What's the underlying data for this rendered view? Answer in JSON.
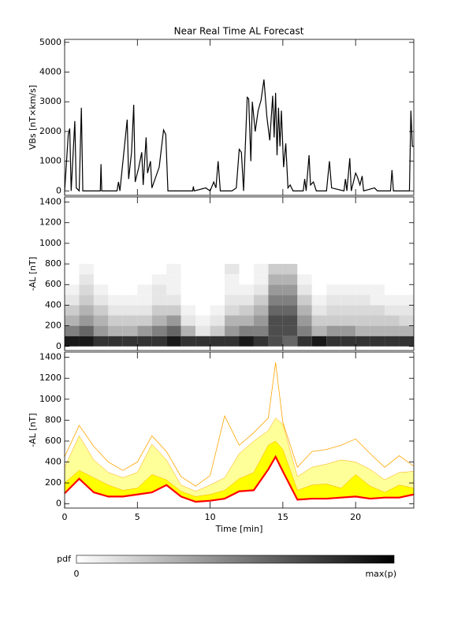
{
  "chart_data": [
    {
      "type": "line",
      "title": "Near Real Time AL Forecast",
      "y_label": "VBs [nT×km/s]",
      "color": "#000000",
      "xlim": [
        0,
        24
      ],
      "xticks": [
        0,
        5,
        10,
        15,
        20
      ],
      "ylim": [
        -150,
        5100
      ],
      "yticks": [
        0,
        1000,
        2000,
        3000,
        4000,
        5000
      ],
      "x": [
        0,
        0.25,
        0.35,
        0.45,
        0.7,
        0.8,
        1.0,
        1.15,
        1.25,
        2.45,
        2.5,
        2.55,
        3.6,
        3.7,
        3.8,
        4.3,
        4.4,
        4.6,
        4.75,
        4.85,
        5.1,
        5.3,
        5.4,
        5.6,
        5.7,
        5.9,
        6.0,
        6.5,
        6.8,
        6.95,
        7.1,
        8.8,
        8.85,
        8.9,
        9.7,
        10.0,
        10.25,
        10.4,
        10.55,
        10.7,
        11.5,
        11.8,
        12.0,
        12.15,
        12.3,
        12.55,
        12.65,
        12.8,
        12.9,
        13.1,
        13.3,
        13.5,
        13.7,
        13.9,
        14.1,
        14.3,
        14.4,
        14.5,
        14.6,
        14.7,
        14.8,
        14.9,
        15.05,
        15.2,
        15.35,
        15.5,
        15.7,
        16.4,
        16.5,
        16.6,
        16.8,
        16.9,
        17.1,
        17.3,
        18.0,
        18.2,
        18.35,
        19.2,
        19.3,
        19.4,
        19.6,
        19.7,
        20.0,
        20.1,
        20.3,
        20.45,
        20.55,
        21.3,
        21.5,
        22.4,
        22.5,
        22.6,
        23.7,
        23.8,
        23.9,
        24.0
      ],
      "values": [
        0,
        1900,
        2100,
        0,
        2350,
        100,
        0,
        2800,
        0,
        0,
        900,
        0,
        0,
        300,
        0,
        2400,
        400,
        1300,
        2900,
        300,
        800,
        1300,
        200,
        1800,
        600,
        1000,
        100,
        800,
        2050,
        1900,
        0,
        0,
        150,
        0,
        100,
        0,
        300,
        100,
        1000,
        0,
        0,
        100,
        1400,
        1300,
        0,
        3150,
        3100,
        1000,
        3000,
        2000,
        2700,
        3050,
        3750,
        2500,
        1700,
        3200,
        1800,
        3300,
        1200,
        2800,
        1500,
        2700,
        800,
        1600,
        100,
        200,
        0,
        0,
        400,
        0,
        1200,
        200,
        300,
        0,
        0,
        1000,
        100,
        0,
        400,
        0,
        1100,
        0,
        600,
        500,
        200,
        500,
        0,
        100,
        0,
        0,
        700,
        0,
        0,
        2700,
        1500,
        1500
      ]
    },
    {
      "type": "heatmap",
      "y_label": "-AL [nT]",
      "xlim": [
        0,
        24
      ],
      "xticks": [
        0,
        5,
        10,
        15,
        20
      ],
      "ylim": [
        -40,
        1450
      ],
      "yticks": [
        0,
        200,
        400,
        600,
        800,
        1000,
        1200,
        1400
      ],
      "x_edges": [
        0,
        1,
        2,
        3,
        4,
        5,
        6,
        7,
        8,
        9,
        10,
        11,
        12,
        13,
        14,
        15,
        16,
        17,
        18,
        19,
        20,
        21,
        22,
        23,
        24
      ],
      "y_edges": [
        0,
        100,
        200,
        300,
        400,
        500,
        600,
        700,
        800
      ],
      "z": [
        [
          0.9,
          0.9,
          0.8,
          0.8,
          0.8,
          0.8,
          0.8,
          0.9,
          0.8,
          0.8,
          0.8,
          0.8,
          0.9,
          0.8,
          0.7,
          0.6,
          0.8,
          0.9,
          0.8,
          0.8,
          0.8,
          0.8,
          0.8,
          0.8
        ],
        [
          0.5,
          0.6,
          0.4,
          0.3,
          0.3,
          0.4,
          0.5,
          0.6,
          0.3,
          0.1,
          0.2,
          0.4,
          0.5,
          0.5,
          0.7,
          0.7,
          0.5,
          0.3,
          0.4,
          0.4,
          0.3,
          0.3,
          0.3,
          0.3
        ],
        [
          0.3,
          0.4,
          0.3,
          0.2,
          0.2,
          0.2,
          0.3,
          0.4,
          0.1,
          0.05,
          0.1,
          0.3,
          0.3,
          0.4,
          0.7,
          0.7,
          0.4,
          0.2,
          0.2,
          0.2,
          0.2,
          0.2,
          0.2,
          0.15
        ],
        [
          0.2,
          0.3,
          0.2,
          0.1,
          0.1,
          0.1,
          0.2,
          0.2,
          0.05,
          0,
          0.05,
          0.15,
          0.2,
          0.3,
          0.6,
          0.6,
          0.3,
          0.1,
          0.15,
          0.15,
          0.15,
          0.15,
          0.1,
          0.1
        ],
        [
          0.1,
          0.2,
          0.1,
          0.05,
          0.05,
          0.05,
          0.1,
          0.1,
          0,
          0,
          0,
          0.1,
          0.1,
          0.2,
          0.5,
          0.5,
          0.2,
          0.05,
          0.1,
          0.1,
          0.1,
          0.05,
          0.05,
          0.05
        ],
        [
          0.05,
          0.15,
          0.05,
          0,
          0,
          0.05,
          0.1,
          0.05,
          0,
          0,
          0,
          0.05,
          0.05,
          0.1,
          0.4,
          0.4,
          0.1,
          0,
          0.05,
          0.05,
          0.05,
          0.05,
          0,
          0
        ],
        [
          0,
          0.1,
          0,
          0,
          0,
          0,
          0.05,
          0.05,
          0,
          0,
          0,
          0.05,
          0,
          0.05,
          0.3,
          0.3,
          0.05,
          0,
          0,
          0,
          0,
          0,
          0,
          0
        ],
        [
          0,
          0.05,
          0,
          0,
          0,
          0,
          0,
          0.05,
          0,
          0,
          0,
          0.1,
          0,
          0.05,
          0.2,
          0.2,
          0,
          0,
          0,
          0,
          0,
          0,
          0,
          0
        ]
      ]
    },
    {
      "type": "band",
      "y_label": "-AL [nT]",
      "x_label": "Time [min]",
      "xlim": [
        0,
        24
      ],
      "xticks": [
        0,
        5,
        10,
        15,
        20
      ],
      "ylim": [
        -40,
        1450
      ],
      "yticks": [
        0,
        200,
        400,
        600,
        800,
        1000,
        1200,
        1400
      ],
      "x": [
        0,
        1,
        2,
        3,
        4,
        5,
        6,
        7,
        8,
        9,
        10,
        11,
        12,
        13,
        14,
        14.5,
        15,
        16,
        17,
        18,
        19,
        20,
        21,
        22,
        23,
        24
      ],
      "median": [
        100,
        240,
        110,
        70,
        70,
        90,
        110,
        180,
        70,
        20,
        30,
        50,
        120,
        130,
        330,
        450,
        310,
        40,
        50,
        50,
        60,
        70,
        50,
        60,
        60,
        90
      ],
      "band_inner": [
        200,
        320,
        250,
        180,
        130,
        150,
        280,
        230,
        120,
        70,
        90,
        130,
        240,
        300,
        560,
        600,
        520,
        130,
        180,
        190,
        150,
        280,
        170,
        110,
        180,
        150
      ],
      "band_outer": [
        350,
        650,
        420,
        300,
        250,
        300,
        570,
        420,
        180,
        120,
        180,
        250,
        480,
        600,
        700,
        820,
        760,
        260,
        350,
        380,
        420,
        400,
        330,
        230,
        300,
        310
      ],
      "max": [
        450,
        750,
        550,
        400,
        320,
        400,
        650,
        500,
        260,
        170,
        270,
        840,
        560,
        680,
        820,
        1350,
        780,
        350,
        500,
        520,
        560,
        620,
        480,
        350,
        460,
        360
      ],
      "median_color": "#ff0000",
      "inner_color": "#ffff00",
      "outer_color": "#ffff99",
      "max_color": "#ffa500"
    },
    {
      "type": "colorbar",
      "label": "pdf",
      "min_label": "0",
      "max_label": "max(p)"
    }
  ]
}
